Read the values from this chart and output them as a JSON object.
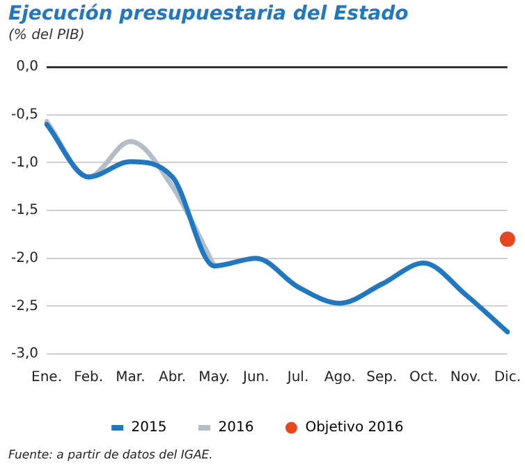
{
  "chart_data": {
    "type": "line",
    "title": "Ejecución presupuestaria del Estado",
    "subtitle": "(% del PIB)",
    "categories": [
      "Ene.",
      "Feb.",
      "Mar.",
      "Abr.",
      "May.",
      "Jun.",
      "Jul.",
      "Ago.",
      "Sep.",
      "Oct.",
      "Nov.",
      "Dic."
    ],
    "series": [
      {
        "name": "2015",
        "color": "#1f78c1",
        "values": [
          -0.6,
          -1.15,
          -0.99,
          -1.15,
          -2.08,
          -2.0,
          -2.3,
          -2.47,
          -2.27,
          -2.05,
          -2.38,
          -2.77
        ]
      },
      {
        "name": "2016",
        "color": "#b4bec6",
        "values": [
          -0.57,
          -1.15,
          -0.78,
          -1.25,
          -2.08,
          null,
          null,
          null,
          null,
          null,
          null,
          null
        ]
      },
      {
        "name": "Objetivo 2016",
        "type": "scatter",
        "color": "#e8461e",
        "values": [
          null,
          null,
          null,
          null,
          null,
          null,
          null,
          null,
          null,
          null,
          null,
          -1.8
        ]
      }
    ],
    "ylim": [
      -3,
      0
    ],
    "yticks": [
      {
        "value": -3,
        "label": "-3,0"
      },
      {
        "value": -2.5,
        "label": "-2,5"
      },
      {
        "value": -2,
        "label": "-2,0"
      },
      {
        "value": -1.5,
        "label": "-1,5"
      },
      {
        "value": -1,
        "label": "-1,0"
      },
      {
        "value": -0.5,
        "label": "-0,5"
      },
      {
        "value": 0,
        "label": "0,0"
      }
    ],
    "grid": "y",
    "legend": "bottom",
    "annotations": [
      "Fuente: a partir de datos del IGAE."
    ]
  }
}
